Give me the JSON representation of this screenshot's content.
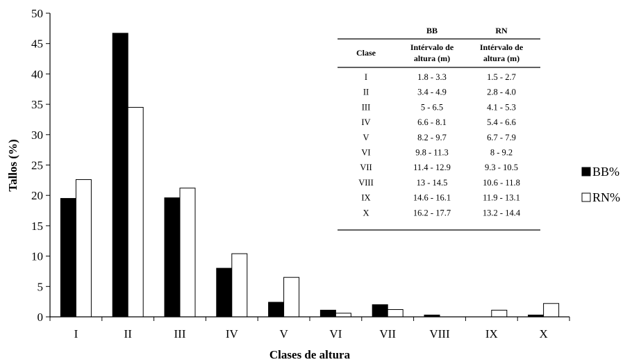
{
  "chart_data": {
    "type": "bar",
    "xlabel": "Clases de altura",
    "ylabel": "Tallos (%)",
    "ylim": [
      0,
      50
    ],
    "yticks": [
      0,
      5,
      10,
      15,
      20,
      25,
      30,
      35,
      40,
      45,
      50
    ],
    "categories": [
      "I",
      "II",
      "III",
      "IV",
      "V",
      "VI",
      "VII",
      "VIII",
      "IX",
      "X"
    ],
    "series": [
      {
        "name": "BB%",
        "color": "#000000",
        "values": [
          19.5,
          46.7,
          19.6,
          8.0,
          2.4,
          1.1,
          2.0,
          0.3,
          0.0,
          0.3
        ]
      },
      {
        "name": "RN%",
        "color": "#ffffff",
        "values": [
          22.6,
          34.5,
          21.2,
          10.4,
          6.5,
          0.6,
          1.2,
          0.0,
          1.1,
          2.2
        ]
      }
    ],
    "legend_position": "right",
    "grid": false,
    "inset_table": {
      "group_headers": [
        "BB",
        "RN"
      ],
      "col_headers": [
        "Clase",
        "Intérvalo de altura (m)",
        "Intérvalo de altura (m)"
      ],
      "rows": [
        [
          "I",
          "1.8 - 3.3",
          "1.5 - 2.7"
        ],
        [
          "II",
          "3.4 - 4.9",
          "2.8 - 4.0"
        ],
        [
          "III",
          "5 - 6.5",
          "4.1 - 5.3"
        ],
        [
          "IV",
          "6.6 - 8.1",
          "5.4 - 6.6"
        ],
        [
          "V",
          "8.2 - 9.7",
          "6.7 - 7.9"
        ],
        [
          "VI",
          "9.8 - 11.3",
          "8 - 9.2"
        ],
        [
          "VII",
          "11.4 - 12.9",
          "9.3 - 10.5"
        ],
        [
          "VIII",
          "13 - 14.5",
          "10.6 - 11.8"
        ],
        [
          "IX",
          "14.6 - 16.1",
          "11.9 - 13.1"
        ],
        [
          "X",
          "16.2 - 17.7",
          "13.2 - 14.4"
        ]
      ]
    }
  }
}
